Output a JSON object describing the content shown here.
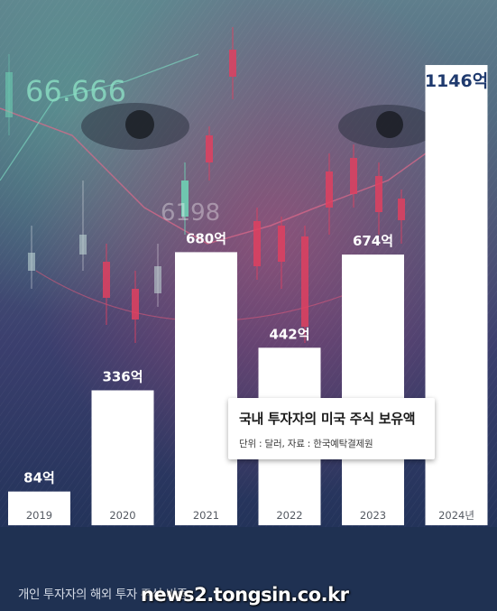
{
  "chart_data": {
    "type": "bar",
    "title": "국내 투자자의 미국 주식 보유액",
    "subtitle": "단위 : 달러, 자료 : 한국예탁결제원",
    "categories": [
      "2019",
      "2020",
      "2021",
      "2022",
      "2023",
      "2024년"
    ],
    "values": [
      84,
      336,
      680,
      442,
      674,
      1146
    ],
    "value_labels": [
      "84억",
      "336억",
      "680억",
      "442억",
      "674억",
      "1146억"
    ],
    "xlabel": "",
    "ylabel": "",
    "ylim": [
      0,
      1200
    ],
    "grid": false,
    "legend": "none",
    "bar_color": "#ffffff",
    "label_color": "#1f3a6e"
  },
  "background": {
    "ticker_text": "66.666",
    "ticker_text_2": "6198"
  },
  "footer": {
    "caption": "개인 투자자의 해외 투자 주식 비중",
    "watermark": "news2.tongsin.co.kr"
  }
}
